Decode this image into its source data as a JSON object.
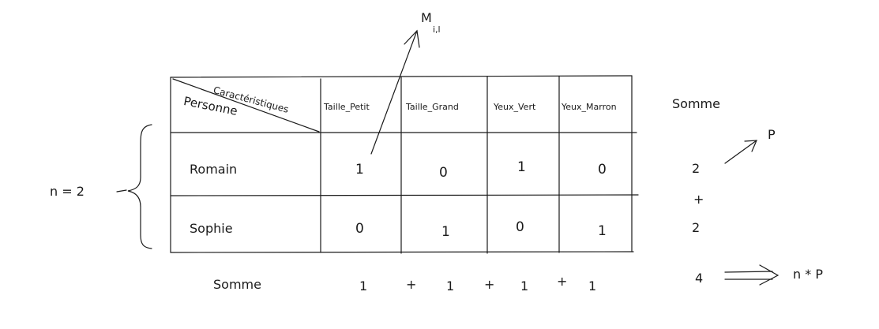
{
  "table": {
    "corner_top": "Caractéristiques",
    "corner_bottom": "Personne",
    "columns": [
      "Taille_Petit",
      "Taille_Grand",
      "Yeux_Vert",
      "Yeux_Marron"
    ],
    "rows": [
      {
        "name": "Romain",
        "values": [
          "1",
          "0",
          "1",
          "0"
        ],
        "sum": "2"
      },
      {
        "name": "Sophie",
        "values": [
          "0",
          "1",
          "0",
          "1"
        ],
        "sum": "2"
      }
    ],
    "sum_header": "Somme"
  },
  "row_sum_plus": "+",
  "bottom": {
    "label": "Somme",
    "items": [
      "1",
      "+",
      "1",
      "+",
      "1",
      "+",
      "1"
    ],
    "total": "4",
    "total_formula": "n * P"
  },
  "annotations": {
    "n_label": "n = 2",
    "m_label": "M",
    "m_sub": "i,l",
    "p_label": "P"
  }
}
